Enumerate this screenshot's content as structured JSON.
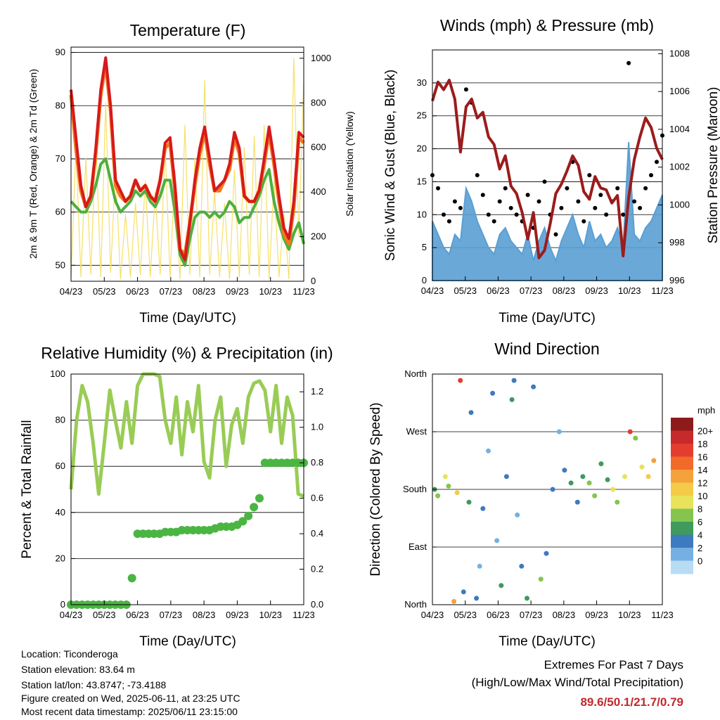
{
  "station": {
    "location": "Location: Ticonderoga",
    "elevation": "Station elevation: 83.64 m",
    "latlon": "Station lat/lon: 43.8747; -73.4188",
    "created": "Figure created on Wed, 2025-06-11, at 23:25 UTC",
    "recent": "Most recent data timestamp: 2025/06/11 23:15:00"
  },
  "extremes": {
    "title": "Extremes For Past 7 Days",
    "subtitle": "(High/Low/Max Wind/Total Precipitation)",
    "values": "89.6/50.1/21.7/0.79"
  },
  "colors": {
    "temp2m": "#d7191c",
    "temp9m": "#f07a1e",
    "dewpoint": "#4daf3f",
    "solar": "#f5e06a",
    "pressure": "#9b1c1c",
    "gust": "#000000",
    "wind": "#5a9fd4",
    "rh": "#99cc55",
    "precip": "#4bb543"
  },
  "chart_data": [
    {
      "type": "line",
      "title": "Temperature (F)",
      "xlabel": "Time (Day/UTC)",
      "ylabel": "2m & 9m T (Red, Orange) & 2m Td (Green)",
      "y2label": "Solar Insolation (Yellow)",
      "x_ticks": [
        "04/23",
        "05/23",
        "06/23",
        "07/23",
        "08/23",
        "09/23",
        "10/23",
        "11/23"
      ],
      "y_ticks": [
        "50",
        "60",
        "70",
        "80",
        "90"
      ],
      "y2_ticks": [
        "0",
        "200",
        "400",
        "600",
        "800",
        "1000"
      ],
      "ylim": [
        47,
        91
      ],
      "y2lim": [
        0,
        1050
      ],
      "grid": true,
      "series": [
        {
          "key": "temp2m",
          "values": [
            83,
            74,
            65,
            61,
            63,
            72,
            83,
            89,
            80,
            66,
            64,
            62,
            63,
            66,
            64,
            65,
            63,
            62,
            66,
            73,
            74,
            65,
            53,
            51,
            58,
            66,
            72,
            76,
            70,
            64,
            65,
            66,
            69,
            75,
            72,
            63,
            62,
            62,
            64,
            70,
            76,
            70,
            63,
            57,
            55,
            62,
            75,
            74
          ]
        },
        {
          "key": "temp9m",
          "values": [
            82,
            72,
            64,
            61,
            63,
            71,
            82,
            88,
            79,
            65,
            63,
            62,
            63,
            66,
            64,
            65,
            63,
            62,
            66,
            72,
            73,
            64,
            53,
            52,
            58,
            65,
            71,
            75,
            69,
            64,
            64,
            66,
            68,
            74,
            71,
            63,
            62,
            62,
            64,
            69,
            75,
            69,
            62,
            56,
            54,
            61,
            74,
            73
          ]
        },
        {
          "key": "dewpoint",
          "values": [
            62,
            61,
            60,
            60,
            62,
            65,
            69,
            70,
            66,
            62,
            60,
            61,
            62,
            64,
            63,
            64,
            62,
            61,
            63,
            66,
            66,
            60,
            52,
            50,
            55,
            59,
            60,
            60,
            59,
            60,
            59,
            60,
            62,
            61,
            58,
            59,
            59,
            61,
            63,
            66,
            68,
            62,
            58,
            55,
            53,
            56,
            58,
            54
          ]
        },
        {
          "key": "solar",
          "values": [
            10,
            600,
            20,
            550,
            30,
            650,
            20,
            800,
            40,
            500,
            10,
            300,
            20,
            350,
            30,
            450,
            20,
            400,
            30,
            600,
            20,
            500,
            10,
            700,
            30,
            550,
            20,
            900,
            30,
            400,
            20,
            350,
            10,
            500,
            20,
            600,
            30,
            650,
            20,
            700,
            10,
            450,
            20,
            300,
            10,
            1000,
            200,
            900
          ]
        }
      ]
    },
    {
      "type": "scatter",
      "title": "Winds (mph) & Pressure (mb)",
      "xlabel": "Time (Day/UTC)",
      "ylabel": "Sonic Wind & Gust (Blue, Black)",
      "y2label": "Station Pressure (Maroon)",
      "x_ticks": [
        "04/23",
        "05/23",
        "06/23",
        "07/23",
        "08/23",
        "09/23",
        "10/23",
        "11/23"
      ],
      "y_ticks": [
        "0",
        "5",
        "10",
        "15",
        "20",
        "25",
        "30"
      ],
      "y2_ticks": [
        "996",
        "998",
        "1000",
        "1002",
        "1004",
        "1006",
        "1008"
      ],
      "ylim": [
        0,
        35
      ],
      "y2lim": [
        996,
        1008.2
      ],
      "grid": true,
      "series": [
        {
          "key": "pressure",
          "values": [
            1005.5,
            1006.5,
            1006.1,
            1006.6,
            1005.6,
            1002.8,
            1005.2,
            1005.6,
            1004.6,
            1004.9,
            1003.6,
            1003.2,
            1001.9,
            1002.6,
            1001.0,
            1000.6,
            999.6,
            998.2,
            999.6,
            997.2,
            997.6,
            999.0,
            1000.6,
            1001.1,
            1001.8,
            1002.6,
            1002.1,
            1000.7,
            1000.3,
            1001.5,
            1000.9,
            1000.8,
            1000.1,
            1000.5,
            997.3,
            1000.4,
            1002.4,
            1003.6,
            1004.6,
            1004.1,
            1003.0,
            1002.4
          ]
        },
        {
          "key": "gust",
          "values": [
            16,
            14,
            10,
            9,
            12,
            11,
            29,
            27,
            16,
            13,
            10,
            9,
            12,
            14,
            11,
            10,
            9,
            13,
            8,
            12,
            15,
            10,
            7,
            11,
            14,
            18,
            12,
            9,
            16,
            11,
            13,
            10,
            12,
            14,
            10,
            33,
            12,
            11,
            14,
            16,
            18,
            22
          ]
        },
        {
          "key": "wind",
          "values": [
            9,
            7,
            5,
            4,
            7,
            6,
            14,
            12,
            9,
            7,
            5,
            4,
            7,
            8,
            6,
            5,
            4,
            7,
            3,
            6,
            8,
            5,
            3,
            6,
            8,
            10,
            7,
            5,
            9,
            6,
            7,
            5,
            6,
            8,
            5,
            21,
            7,
            6,
            8,
            9,
            11,
            13
          ]
        }
      ]
    },
    {
      "type": "line",
      "title": "Relative Humidity (%) & Precipitation (in)",
      "xlabel": "Time (Day/UTC)",
      "ylabel": "Percent & Total Rainfall",
      "x_ticks": [
        "04/23",
        "05/23",
        "06/23",
        "07/23",
        "08/23",
        "09/23",
        "10/23",
        "11/23"
      ],
      "y_ticks": [
        "0",
        "20",
        "40",
        "60",
        "80",
        "100"
      ],
      "y2_ticks": [
        "0.0",
        "0.2",
        "0.4",
        "0.6",
        "0.8",
        "1.0",
        "1.2"
      ],
      "ylim": [
        0,
        100
      ],
      "y2lim": [
        0,
        1.3
      ],
      "grid": true,
      "series": [
        {
          "key": "rh",
          "values": [
            50,
            80,
            95,
            88,
            70,
            48,
            70,
            93,
            80,
            68,
            88,
            70,
            95,
            100,
            100,
            100,
            99,
            80,
            70,
            90,
            65,
            88,
            75,
            95,
            62,
            55,
            80,
            90,
            60,
            78,
            85,
            70,
            90,
            96,
            97,
            93,
            75,
            95,
            70,
            90,
            82,
            48,
            47
          ]
        },
        {
          "key": "precip",
          "values": [
            0.0,
            0.0,
            0.0,
            0.0,
            0.0,
            0.0,
            0.0,
            0.0,
            0.0,
            0.0,
            0.0,
            0.15,
            0.4,
            0.4,
            0.4,
            0.4,
            0.4,
            0.41,
            0.41,
            0.41,
            0.42,
            0.42,
            0.42,
            0.42,
            0.42,
            0.42,
            0.43,
            0.44,
            0.44,
            0.44,
            0.45,
            0.47,
            0.5,
            0.55,
            0.6,
            0.8,
            0.8,
            0.8,
            0.8,
            0.8,
            0.8,
            0.8,
            0.8
          ]
        }
      ]
    },
    {
      "type": "scatter",
      "title": "Wind Direction",
      "xlabel": "Time (Day/UTC)",
      "ylabel": "Direction (Colored By Speed)",
      "x_ticks": [
        "04/23",
        "05/23",
        "06/23",
        "07/23",
        "08/23",
        "09/23",
        "10/23",
        "11/23"
      ],
      "y_ticks": [
        "North",
        "East",
        "South",
        "West",
        "North"
      ],
      "colorbar": {
        "title": "mph",
        "labels": [
          "20+",
          "18",
          "16",
          "14",
          "12",
          "10",
          "8",
          "6",
          "4",
          "2",
          "0"
        ],
        "colors": [
          "#8e1b1b",
          "#c62a2a",
          "#e33d2f",
          "#f26a2a",
          "#f5a13c",
          "#f3cb49",
          "#e8e35a",
          "#84c44f",
          "#3f9a5b",
          "#3c7bbf",
          "#76b0e2",
          "#b8dcf4"
        ]
      },
      "grid": true,
      "series": [
        {
          "key": "direction",
          "values": [
            [
              0.2,
              180,
              6
            ],
            [
              0.5,
              170,
              8
            ],
            [
              1.2,
              200,
              10
            ],
            [
              1.5,
              185,
              9
            ],
            [
              2.0,
              5,
              14
            ],
            [
              2.3,
              175,
              12
            ],
            [
              2.6,
              350,
              18
            ],
            [
              2.9,
              20,
              4
            ],
            [
              3.4,
              160,
              6
            ],
            [
              3.6,
              300,
              5
            ],
            [
              4.1,
              10,
              4
            ],
            [
              4.4,
              60,
              3
            ],
            [
              4.7,
              150,
              5
            ],
            [
              5.2,
              240,
              2
            ],
            [
              5.6,
              330,
              4
            ],
            [
              6.0,
              100,
              3
            ],
            [
              6.4,
              30,
              6
            ],
            [
              6.9,
              200,
              4
            ],
            [
              7.4,
              320,
              7
            ],
            [
              7.6,
              350,
              5
            ],
            [
              7.9,
              140,
              3
            ],
            [
              8.3,
              60,
              4
            ],
            [
              8.8,
              10,
              6
            ],
            [
              9.4,
              340,
              5
            ],
            [
              10.1,
              40,
              8
            ],
            [
              10.6,
              80,
              4
            ],
            [
              11.2,
              180,
              5
            ],
            [
              11.8,
              270,
              3
            ],
            [
              12.3,
              210,
              4
            ],
            [
              12.9,
              190,
              6
            ],
            [
              13.5,
              160,
              5
            ],
            [
              14.0,
              200,
              7
            ],
            [
              14.6,
              190,
              9
            ],
            [
              15.1,
              170,
              8
            ],
            [
              15.7,
              220,
              6
            ],
            [
              16.3,
              195,
              7
            ],
            [
              16.8,
              180,
              10
            ],
            [
              17.2,
              160,
              9
            ],
            [
              17.9,
              200,
              11
            ],
            [
              18.4,
              270,
              18
            ],
            [
              18.9,
              260,
              9
            ],
            [
              19.5,
              215,
              10
            ],
            [
              20.1,
              200,
              12
            ],
            [
              20.6,
              225,
              14
            ]
          ]
        }
      ]
    }
  ]
}
